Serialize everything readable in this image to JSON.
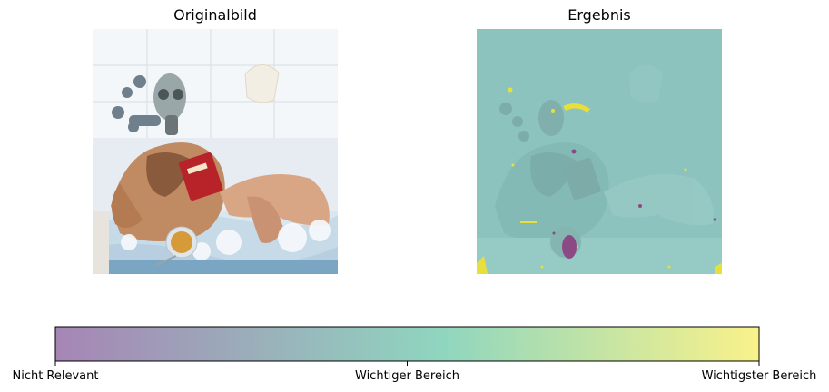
{
  "panels": {
    "left_title": "Originalbild",
    "right_title": "Ergebnis"
  },
  "colors": {
    "cmap_low": "#a685b5",
    "cmap_mid": "#8fd6bf",
    "cmap_high": "#f9f28a",
    "overlay_base": "#8cc3bf",
    "hotspot_high": "#e8df3c",
    "hotspot_low": "#8c4a84"
  },
  "chart_data": {
    "type": "heatmap",
    "title": "",
    "colorbar": {
      "orientation": "horizontal",
      "range": [
        0,
        1
      ],
      "ticks": [
        {
          "value": 0.0,
          "label": "Nicht Relevant"
        },
        {
          "value": 0.5,
          "label": "Wichtiger Bereich"
        },
        {
          "value": 1.0,
          "label": "Wichtigster Bereich"
        }
      ]
    }
  }
}
